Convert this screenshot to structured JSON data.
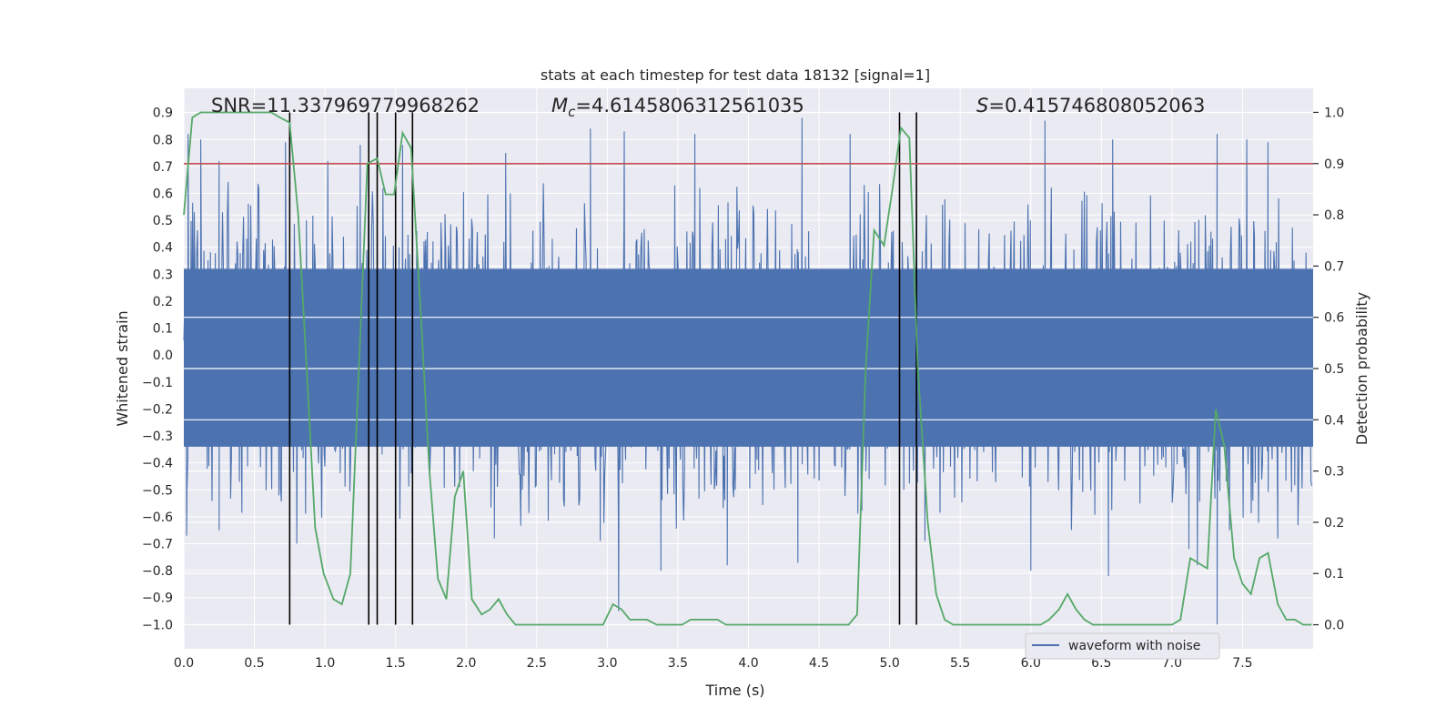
{
  "chart_data": {
    "type": "line",
    "title": "stats at each timestep for test data 18132 [signal=1]",
    "xlabel": "Time (s)",
    "ylabel": "Whitened strain",
    "y2label": "Detection probability",
    "xlim": [
      0.0,
      8.0
    ],
    "ylim": [
      -1.09,
      0.99
    ],
    "y2lim": [
      -0.047,
      1.047
    ],
    "x_ticks": [
      0.0,
      0.5,
      1.0,
      1.5,
      2.0,
      2.5,
      3.0,
      3.5,
      4.0,
      4.5,
      5.0,
      5.5,
      6.0,
      6.5,
      7.0,
      7.5
    ],
    "x_tick_labels": [
      "0.0",
      "0.5",
      "1.0",
      "1.5",
      "2.0",
      "2.5",
      "3.0",
      "3.5",
      "4.0",
      "4.5",
      "5.0",
      "5.5",
      "6.0",
      "6.5",
      "7.0",
      "7.5"
    ],
    "y_ticks": [
      0.9,
      0.8,
      0.7,
      0.6,
      0.5,
      0.4,
      0.3,
      0.2,
      0.1,
      0.0,
      -0.1,
      -0.2,
      -0.3,
      -0.4,
      -0.5,
      -0.6,
      -0.7,
      -0.8,
      -0.9,
      -1.0
    ],
    "y_tick_labels": [
      "0.9",
      "0.8",
      "0.7",
      "0.6",
      "0.5",
      "0.4",
      "0.3",
      "0.2",
      "0.1",
      "0.0",
      "−0.1",
      "−0.2",
      "−0.3",
      "−0.4",
      "−0.5",
      "−0.6",
      "−0.7",
      "−0.8",
      "−0.9",
      "−1.0"
    ],
    "y2_ticks": [
      1.0,
      0.9,
      0.8,
      0.7,
      0.6,
      0.5,
      0.4,
      0.3,
      0.2,
      0.1,
      0.0
    ],
    "y2_tick_labels": [
      "1.0",
      "0.9",
      "0.8",
      "0.7",
      "0.6",
      "0.5",
      "0.4",
      "0.3",
      "0.2",
      "0.1",
      "0.0"
    ],
    "annotations": {
      "snr": "SNR=11.337969779968262",
      "mc_symbol": "M",
      "mc_sub": "c",
      "mc_value": "=4.6145806312561035",
      "s_symbol": "S",
      "s_value": "=0.415746808052063"
    },
    "threshold": {
      "value": 0.9,
      "axis": "right",
      "color": "#c44e52"
    },
    "vertical_lines": [
      0.75,
      1.31,
      1.37,
      1.5,
      1.62,
      5.07,
      5.19
    ],
    "legend": {
      "label": "waveform with noise",
      "location": "lower-right"
    },
    "waveform": {
      "name": "waveform with noise",
      "color": "#4c72b0",
      "envelope": "noise band roughly -0.45 to 0.45 with spikes up to about 0.88 and down to about -1.0",
      "spikes": [
        {
          "x": 0.03,
          "y": 0.82
        },
        {
          "x": 0.12,
          "y": 0.8
        },
        {
          "x": 0.25,
          "y": 0.72
        },
        {
          "x": 0.72,
          "y": 0.79
        },
        {
          "x": 1.02,
          "y": 0.72
        },
        {
          "x": 1.25,
          "y": 0.78
        },
        {
          "x": 1.55,
          "y": 0.78
        },
        {
          "x": 2.28,
          "y": 0.75
        },
        {
          "x": 2.88,
          "y": 0.84
        },
        {
          "x": 3.12,
          "y": 0.83
        },
        {
          "x": 3.62,
          "y": 0.82
        },
        {
          "x": 4.38,
          "y": 0.88
        },
        {
          "x": 4.72,
          "y": 0.82
        },
        {
          "x": 6.1,
          "y": 0.87
        },
        {
          "x": 6.58,
          "y": 0.8
        },
        {
          "x": 7.32,
          "y": 0.82
        },
        {
          "x": 7.68,
          "y": 0.79
        },
        {
          "x": 7.53,
          "y": 0.8
        },
        {
          "x": 0.02,
          "y": -0.67
        },
        {
          "x": 0.25,
          "y": -0.65
        },
        {
          "x": 0.8,
          "y": -0.7
        },
        {
          "x": 2.2,
          "y": -0.68
        },
        {
          "x": 2.95,
          "y": -0.69
        },
        {
          "x": 3.08,
          "y": -0.95
        },
        {
          "x": 3.38,
          "y": -0.8
        },
        {
          "x": 3.85,
          "y": -0.78
        },
        {
          "x": 4.35,
          "y": -0.77
        },
        {
          "x": 5.25,
          "y": -0.69
        },
        {
          "x": 6.0,
          "y": -0.8
        },
        {
          "x": 6.55,
          "y": -0.82
        },
        {
          "x": 7.12,
          "y": -0.72
        },
        {
          "x": 7.18,
          "y": -0.78
        },
        {
          "x": 7.32,
          "y": -1.0
        },
        {
          "x": 7.75,
          "y": -0.68
        }
      ]
    },
    "probability": {
      "name": "detection probability",
      "color": "#55a868",
      "x": [
        0.0,
        0.06,
        0.12,
        0.18,
        0.25,
        0.31,
        0.37,
        0.43,
        0.5,
        0.56,
        0.62,
        0.68,
        0.75,
        0.81,
        0.87,
        0.93,
        0.99,
        1.06,
        1.12,
        1.18,
        1.24,
        1.3,
        1.37,
        1.43,
        1.49,
        1.55,
        1.61,
        1.68,
        1.74,
        1.8,
        1.86,
        1.92,
        1.98,
        2.04,
        2.11,
        2.17,
        2.23,
        2.29,
        2.35,
        2.42,
        2.48,
        2.54,
        2.6,
        2.66,
        2.73,
        2.79,
        2.85,
        2.91,
        2.97,
        3.04,
        3.1,
        3.16,
        3.22,
        3.28,
        3.35,
        3.41,
        3.47,
        3.53,
        3.59,
        3.66,
        3.72,
        3.78,
        3.84,
        3.9,
        3.97,
        4.03,
        4.09,
        4.15,
        4.21,
        4.28,
        4.34,
        4.4,
        4.46,
        4.52,
        4.59,
        4.65,
        4.71,
        4.77,
        4.83,
        4.89,
        4.96,
        5.02,
        5.08,
        5.14,
        5.2,
        5.27,
        5.33,
        5.39,
        5.45,
        5.51,
        5.58,
        5.64,
        5.7,
        5.76,
        5.82,
        5.89,
        5.95,
        6.01,
        6.07,
        6.13,
        6.2,
        6.26,
        6.32,
        6.38,
        6.44,
        6.51,
        6.57,
        6.63,
        6.69,
        6.75,
        6.82,
        6.88,
        6.94,
        7.0,
        7.06,
        7.13,
        7.19,
        7.25,
        7.31,
        7.37,
        7.44,
        7.5,
        7.56,
        7.62,
        7.68,
        7.75,
        7.81,
        7.87,
        7.93,
        7.99
      ],
      "y": [
        0.8,
        0.99,
        1.0,
        1.0,
        1.0,
        1.0,
        1.0,
        1.0,
        1.0,
        1.0,
        1.0,
        0.99,
        0.98,
        0.8,
        0.5,
        0.19,
        0.1,
        0.05,
        0.04,
        0.1,
        0.5,
        0.9,
        0.91,
        0.84,
        0.84,
        0.96,
        0.93,
        0.6,
        0.3,
        0.09,
        0.05,
        0.25,
        0.3,
        0.05,
        0.02,
        0.03,
        0.05,
        0.02,
        0.0,
        0.0,
        0.0,
        0.0,
        0.0,
        0.0,
        0.0,
        0.0,
        0.0,
        0.0,
        0.0,
        0.04,
        0.03,
        0.01,
        0.01,
        0.01,
        0.0,
        0.0,
        0.0,
        0.0,
        0.01,
        0.01,
        0.01,
        0.01,
        0.0,
        0.0,
        0.0,
        0.0,
        0.0,
        0.0,
        0.0,
        0.0,
        0.0,
        0.0,
        0.0,
        0.0,
        0.0,
        0.0,
        0.0,
        0.02,
        0.5,
        0.77,
        0.74,
        0.85,
        0.97,
        0.95,
        0.5,
        0.2,
        0.06,
        0.01,
        0.0,
        0.0,
        0.0,
        0.0,
        0.0,
        0.0,
        0.0,
        0.0,
        0.0,
        0.0,
        0.0,
        0.01,
        0.03,
        0.06,
        0.03,
        0.01,
        0.0,
        0.0,
        0.0,
        0.0,
        0.0,
        0.0,
        0.0,
        0.0,
        0.0,
        0.0,
        0.01,
        0.13,
        0.12,
        0.11,
        0.42,
        0.35,
        0.13,
        0.08,
        0.06,
        0.13,
        0.14,
        0.04,
        0.01,
        0.01,
        0.0,
        0.0
      ]
    }
  }
}
